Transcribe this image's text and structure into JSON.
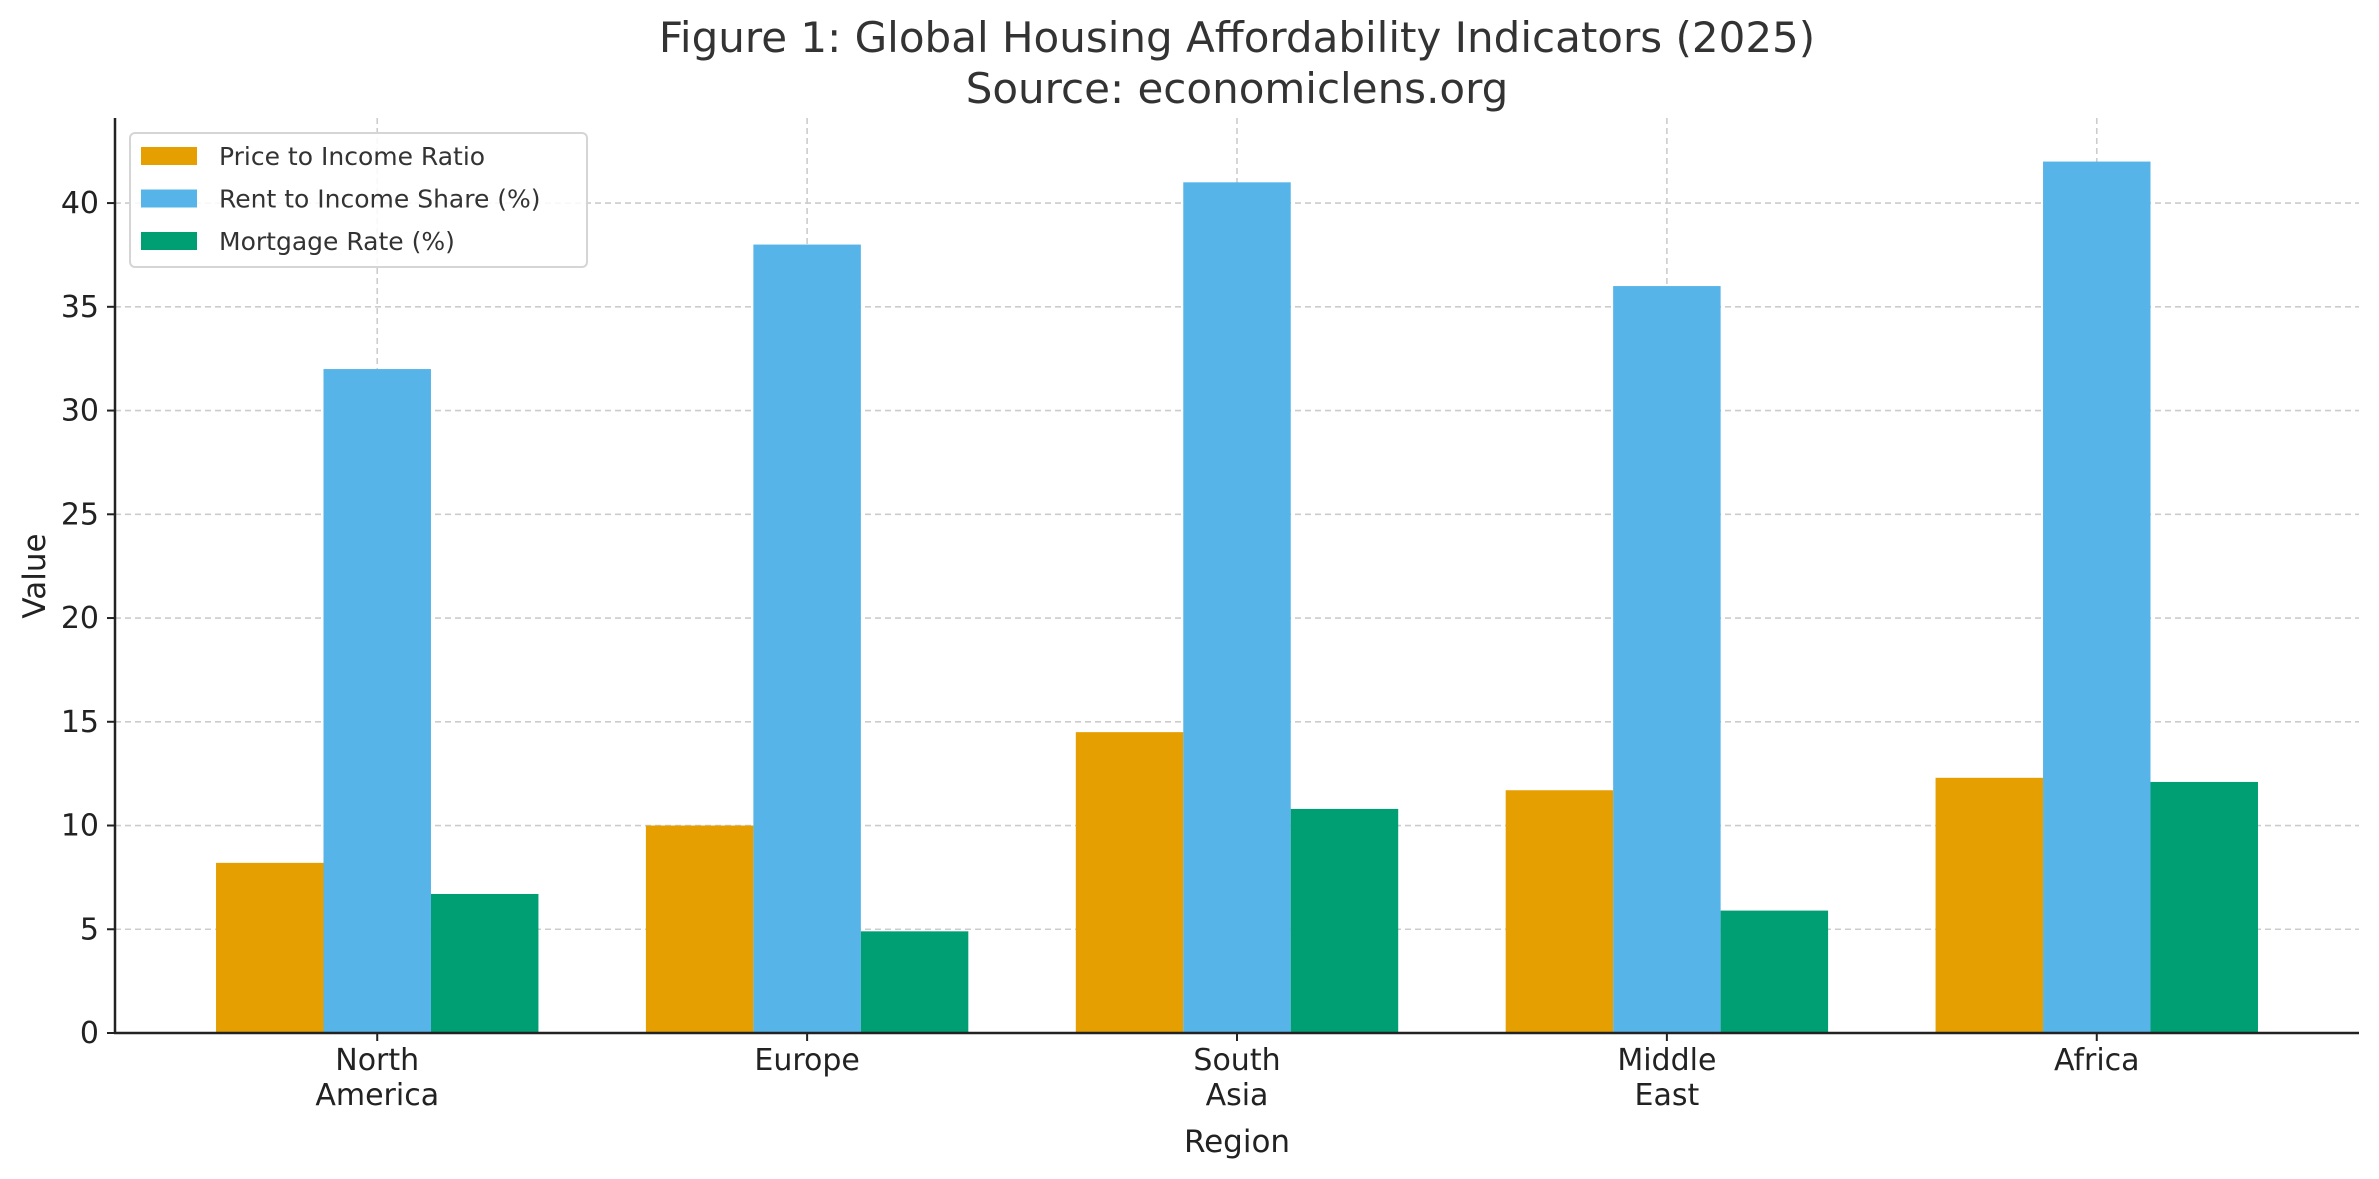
{
  "chart_data": {
    "type": "bar",
    "title": "Figure 1: Global Housing Affordability Indicators (2025)",
    "subtitle": "Source: economiclens.org",
    "xlabel": "Region",
    "ylabel": "Value",
    "categories": [
      [
        "North",
        "America"
      ],
      [
        "Europe"
      ],
      [
        "South",
        "Asia"
      ],
      [
        "Middle",
        "East"
      ],
      [
        "Africa"
      ]
    ],
    "series": [
      {
        "name": "Price to Income Ratio",
        "color": "#E69F00",
        "values": [
          8.2,
          10.0,
          14.5,
          11.7,
          12.3
        ]
      },
      {
        "name": "Rent to Income Share (%)",
        "color": "#56B4E9",
        "values": [
          32,
          38,
          41,
          36,
          42
        ]
      },
      {
        "name": "Mortgage Rate (%)",
        "color": "#009E73",
        "values": [
          6.7,
          4.9,
          10.8,
          5.9,
          12.1
        ]
      }
    ],
    "ylim": [
      0,
      44.1
    ],
    "yticks": [
      0,
      5,
      10,
      15,
      20,
      25,
      30,
      35,
      40
    ],
    "grid": true,
    "legend": "top-left"
  }
}
